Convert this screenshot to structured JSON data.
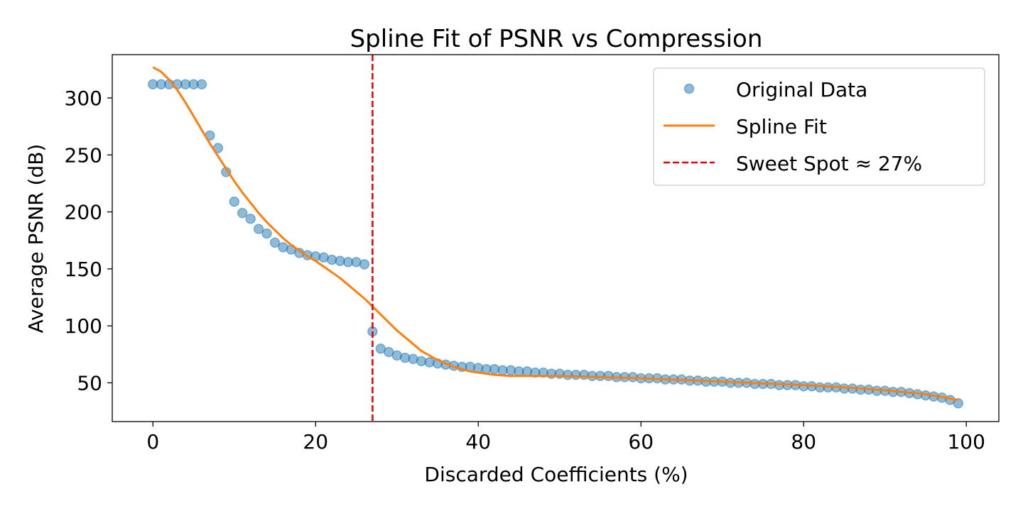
{
  "chart_data": {
    "type": "scatter",
    "title": "Spline Fit of PSNR vs Compression",
    "xlabel": "Discarded Coefficients (%)",
    "ylabel": "Average PSNR (dB)",
    "xlim": [
      -5,
      104
    ],
    "ylim": [
      16,
      338
    ],
    "xticks": [
      0,
      20,
      40,
      60,
      80,
      100
    ],
    "yticks": [
      50,
      100,
      150,
      200,
      250,
      300
    ],
    "grid": false,
    "legend": {
      "placement": "top-right",
      "entries": [
        "Original Data",
        "Spline Fit",
        "Sweet Spot ≈ 27%"
      ]
    },
    "colors": {
      "points": "#1f77b4",
      "spline": "#ff7f0e",
      "sweet_spot": "#e60000"
    },
    "series": [
      {
        "name": "Original Data",
        "type": "scatter",
        "x": [
          0,
          1,
          2,
          3,
          4,
          5,
          6,
          7,
          8,
          9,
          10,
          11,
          12,
          13,
          14,
          15,
          16,
          17,
          18,
          19,
          20,
          21,
          22,
          23,
          24,
          25,
          26,
          27,
          28,
          29,
          30,
          31,
          32,
          33,
          34,
          35,
          36,
          37,
          38,
          39,
          40,
          41,
          42,
          43,
          44,
          45,
          46,
          47,
          48,
          49,
          50,
          51,
          52,
          53,
          54,
          55,
          56,
          57,
          58,
          59,
          60,
          61,
          62,
          63,
          64,
          65,
          66,
          67,
          68,
          69,
          70,
          71,
          72,
          73,
          74,
          75,
          76,
          77,
          78,
          79,
          80,
          81,
          82,
          83,
          84,
          85,
          86,
          87,
          88,
          89,
          90,
          91,
          92,
          93,
          94,
          95,
          96,
          97,
          98,
          99
        ],
        "y": [
          312,
          312,
          312,
          312,
          312,
          312,
          312,
          267,
          256,
          235,
          209,
          199,
          194,
          185,
          181,
          173,
          169,
          167,
          164,
          162,
          161,
          160,
          158,
          157,
          156,
          156,
          154,
          95,
          80,
          77,
          74,
          72,
          71,
          69,
          68,
          67,
          66,
          65,
          64,
          64,
          63,
          62,
          62,
          61,
          61,
          60,
          60,
          59,
          59,
          58,
          58,
          57,
          57,
          57,
          56,
          56,
          56,
          55,
          55,
          55,
          54,
          54,
          54,
          53,
          53,
          53,
          52,
          52,
          51,
          51,
          51,
          50,
          50,
          50,
          49,
          49,
          49,
          48,
          48,
          48,
          47,
          47,
          46,
          46,
          46,
          45,
          45,
          44,
          44,
          43,
          43,
          42,
          42,
          41,
          40,
          39,
          38,
          37,
          35,
          32
        ]
      },
      {
        "name": "Spline Fit",
        "type": "line",
        "x": [
          0,
          1,
          2,
          3,
          4,
          5,
          6,
          7,
          8,
          9,
          10,
          11,
          12,
          13,
          14,
          15,
          16,
          17,
          18,
          19,
          20,
          21,
          22,
          23,
          24,
          25,
          26,
          27,
          28,
          29,
          30,
          31,
          32,
          33,
          34,
          35,
          36,
          37,
          38,
          39,
          40,
          41,
          42,
          43,
          44,
          45,
          46,
          47,
          48,
          49,
          50,
          52,
          55,
          58,
          60,
          65,
          70,
          75,
          80,
          85,
          90,
          95,
          99
        ],
        "y": [
          327,
          323,
          316,
          307,
          296,
          284,
          272,
          260,
          249,
          238,
          227,
          217,
          208,
          199,
          191,
          184,
          177,
          171,
          166,
          161,
          157,
          152,
          147,
          142,
          136,
          130,
          124,
          117,
          110,
          103,
          96,
          90,
          84,
          78,
          74,
          70,
          67,
          64,
          62,
          60,
          59,
          58,
          57,
          56.5,
          56,
          56,
          56,
          56,
          56,
          56,
          56,
          55.6,
          55,
          54.4,
          54,
          52.5,
          51,
          49.5,
          48,
          46,
          43.5,
          40,
          35
        ]
      }
    ],
    "annotations": [
      {
        "name": "Sweet Spot ≈ 27%",
        "type": "vline",
        "x": 27
      }
    ]
  }
}
